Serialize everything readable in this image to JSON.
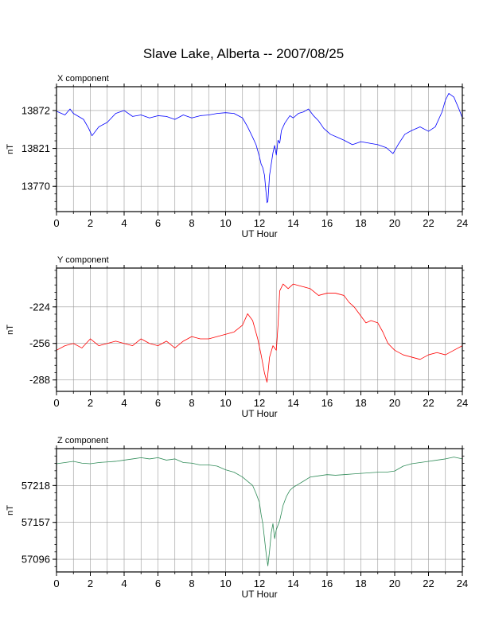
{
  "title": "Slave Lake, Alberta -- 2007/08/25",
  "chart_data": [
    {
      "type": "line",
      "title": "X component",
      "xlabel": "UT Hour",
      "ylabel": "nT",
      "xlim": [
        0,
        24
      ],
      "ylim": [
        13736,
        13904
      ],
      "xticks": [
        0,
        2,
        4,
        6,
        8,
        10,
        12,
        14,
        16,
        18,
        20,
        22,
        24
      ],
      "yticks": [
        13872,
        13821,
        13770
      ],
      "grid": true,
      "color": "#0000ff",
      "series": [
        {
          "x": [
            0,
            0.5,
            0.8,
            1,
            1.3,
            1.6,
            1.9,
            2.1,
            2.5,
            3,
            3.5,
            4,
            4.5,
            5,
            5.5,
            6,
            6.5,
            7,
            7.5,
            8,
            8.5,
            9,
            9.5,
            10,
            10.5,
            11,
            11.3,
            11.6,
            11.8,
            12,
            12.1,
            12.2,
            12.3,
            12.4,
            12.45,
            12.5,
            12.6,
            12.7,
            12.8,
            12.9,
            13,
            13.1,
            13.2,
            13.3,
            13.5,
            13.8,
            14,
            14.3,
            14.6,
            14.9,
            15.2,
            15.5,
            15.8,
            16.2,
            16.6,
            17,
            17.5,
            18,
            18.5,
            19,
            19.5,
            19.9,
            20.2,
            20.6,
            21,
            21.5,
            22,
            22.4,
            22.8,
            23,
            23.2,
            23.5,
            23.8,
            24
          ],
          "y": [
            13871,
            13866,
            13874,
            13868,
            13864,
            13860,
            13848,
            13838,
            13850,
            13856,
            13868,
            13872,
            13864,
            13866,
            13862,
            13865,
            13864,
            13860,
            13866,
            13862,
            13865,
            13866,
            13868,
            13869,
            13868,
            13862,
            13850,
            13836,
            13826,
            13810,
            13800,
            13795,
            13785,
            13760,
            13748,
            13750,
            13785,
            13800,
            13815,
            13825,
            13812,
            13832,
            13828,
            13845,
            13855,
            13865,
            13862,
            13868,
            13870,
            13874,
            13865,
            13858,
            13848,
            13840,
            13836,
            13832,
            13826,
            13830,
            13828,
            13826,
            13822,
            13814,
            13826,
            13840,
            13845,
            13850,
            13844,
            13850,
            13870,
            13886,
            13895,
            13890,
            13874,
            13862
          ]
        }
      ]
    },
    {
      "type": "line",
      "title": "Y component",
      "xlabel": "UT Hour",
      "ylabel": "nT",
      "xlim": [
        0,
        24
      ],
      "ylim": [
        -298,
        -190
      ],
      "xticks": [
        0,
        2,
        4,
        6,
        8,
        10,
        12,
        14,
        16,
        18,
        20,
        22,
        24
      ],
      "yticks": [
        -224,
        -256,
        -288
      ],
      "grid": true,
      "color": "#ff0000",
      "series": [
        {
          "x": [
            0,
            0.5,
            1,
            1.5,
            2,
            2.5,
            3,
            3.5,
            4,
            4.5,
            5,
            5.5,
            6,
            6.5,
            7,
            7.5,
            8,
            8.5,
            9,
            9.5,
            10,
            10.5,
            11,
            11.3,
            11.6,
            11.9,
            12.1,
            12.3,
            12.45,
            12.6,
            12.8,
            13,
            13.1,
            13.2,
            13.4,
            13.7,
            14,
            14.5,
            15,
            15.5,
            16,
            16.5,
            17,
            17.3,
            17.6,
            18,
            18.3,
            18.6,
            19,
            19.3,
            19.6,
            20,
            20.5,
            21,
            21.5,
            22,
            22.5,
            23,
            23.5,
            24
          ],
          "y": [
            -262,
            -258,
            -256,
            -260,
            -252,
            -258,
            -256,
            -254,
            -256,
            -258,
            -252,
            -256,
            -258,
            -254,
            -260,
            -254,
            -250,
            -252,
            -252,
            -250,
            -248,
            -246,
            -240,
            -230,
            -236,
            -252,
            -266,
            -282,
            -290,
            -268,
            -258,
            -262,
            -240,
            -210,
            -204,
            -208,
            -204,
            -206,
            -208,
            -214,
            -212,
            -212,
            -214,
            -220,
            -224,
            -232,
            -238,
            -236,
            -238,
            -246,
            -256,
            -262,
            -266,
            -268,
            -270,
            -266,
            -264,
            -266,
            -262,
            -258
          ]
        }
      ]
    },
    {
      "type": "line",
      "title": "Z component",
      "xlabel": "UT Hour",
      "ylabel": "nT",
      "xlim": [
        0,
        24
      ],
      "ylim": [
        57075,
        57279
      ],
      "xticks": [
        0,
        2,
        4,
        6,
        8,
        10,
        12,
        14,
        16,
        18,
        20,
        22,
        24
      ],
      "yticks": [
        57218,
        57157,
        57096
      ],
      "grid": true,
      "color": "#2e8b57",
      "series": [
        {
          "x": [
            0,
            0.5,
            1,
            1.5,
            2,
            2.5,
            3,
            3.5,
            4,
            4.5,
            5,
            5.5,
            6,
            6.5,
            7,
            7.5,
            8,
            8.5,
            9,
            9.5,
            10,
            10.5,
            11,
            11.3,
            11.6,
            11.8,
            12,
            12.1,
            12.2,
            12.3,
            12.4,
            12.5,
            12.6,
            12.7,
            12.8,
            12.9,
            13,
            13.2,
            13.4,
            13.6,
            13.8,
            14,
            14.3,
            14.6,
            15,
            15.5,
            16,
            16.5,
            17,
            17.5,
            18,
            18.5,
            19,
            19.5,
            20,
            20.5,
            21,
            21.5,
            22,
            22.5,
            23,
            23.5,
            24
          ],
          "y": [
            57254,
            57256,
            57258,
            57255,
            57254,
            57256,
            57257,
            57258,
            57260,
            57262,
            57264,
            57262,
            57264,
            57260,
            57262,
            57256,
            57255,
            57252,
            57252,
            57250,
            57244,
            57240,
            57232,
            57225,
            57218,
            57205,
            57190,
            57170,
            57155,
            57130,
            57105,
            57085,
            57110,
            57140,
            57155,
            57130,
            57145,
            57160,
            57185,
            57200,
            57210,
            57215,
            57220,
            57225,
            57232,
            57234,
            57236,
            57235,
            57236,
            57237,
            57238,
            57239,
            57240,
            57240,
            57242,
            57250,
            57254,
            57256,
            57258,
            57260,
            57262,
            57265,
            57262
          ]
        }
      ]
    }
  ]
}
